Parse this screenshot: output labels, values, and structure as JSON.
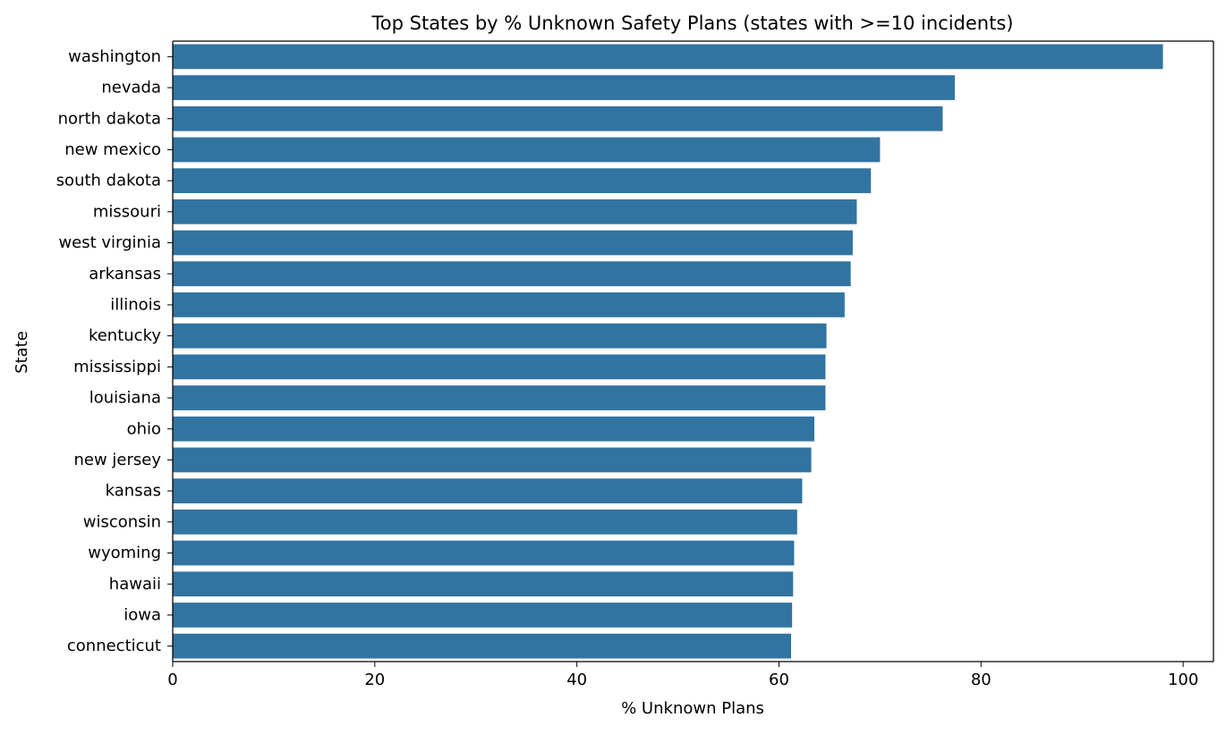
{
  "chart_data": {
    "type": "bar",
    "orientation": "horizontal",
    "title": "Top States by % Unknown Safety Plans (states with >=10 incidents)",
    "xlabel": "% Unknown Plans",
    "ylabel": "State",
    "xlim": [
      0,
      103
    ],
    "xticks": [
      0,
      20,
      40,
      60,
      80,
      100
    ],
    "grid": false,
    "legend": "none",
    "bar_color": "#3274a1",
    "categories": [
      "washington",
      "nevada",
      "north dakota",
      "new mexico",
      "south dakota",
      "missouri",
      "west virginia",
      "arkansas",
      "illinois",
      "kentucky",
      "mississippi",
      "louisiana",
      "ohio",
      "new jersey",
      "kansas",
      "wisconsin",
      "wyoming",
      "hawaii",
      "iowa",
      "connecticut"
    ],
    "values": [
      98.0,
      77.4,
      76.2,
      70.0,
      69.1,
      67.7,
      67.3,
      67.1,
      66.5,
      64.7,
      64.6,
      64.6,
      63.5,
      63.2,
      62.3,
      61.8,
      61.5,
      61.4,
      61.3,
      61.2
    ]
  }
}
